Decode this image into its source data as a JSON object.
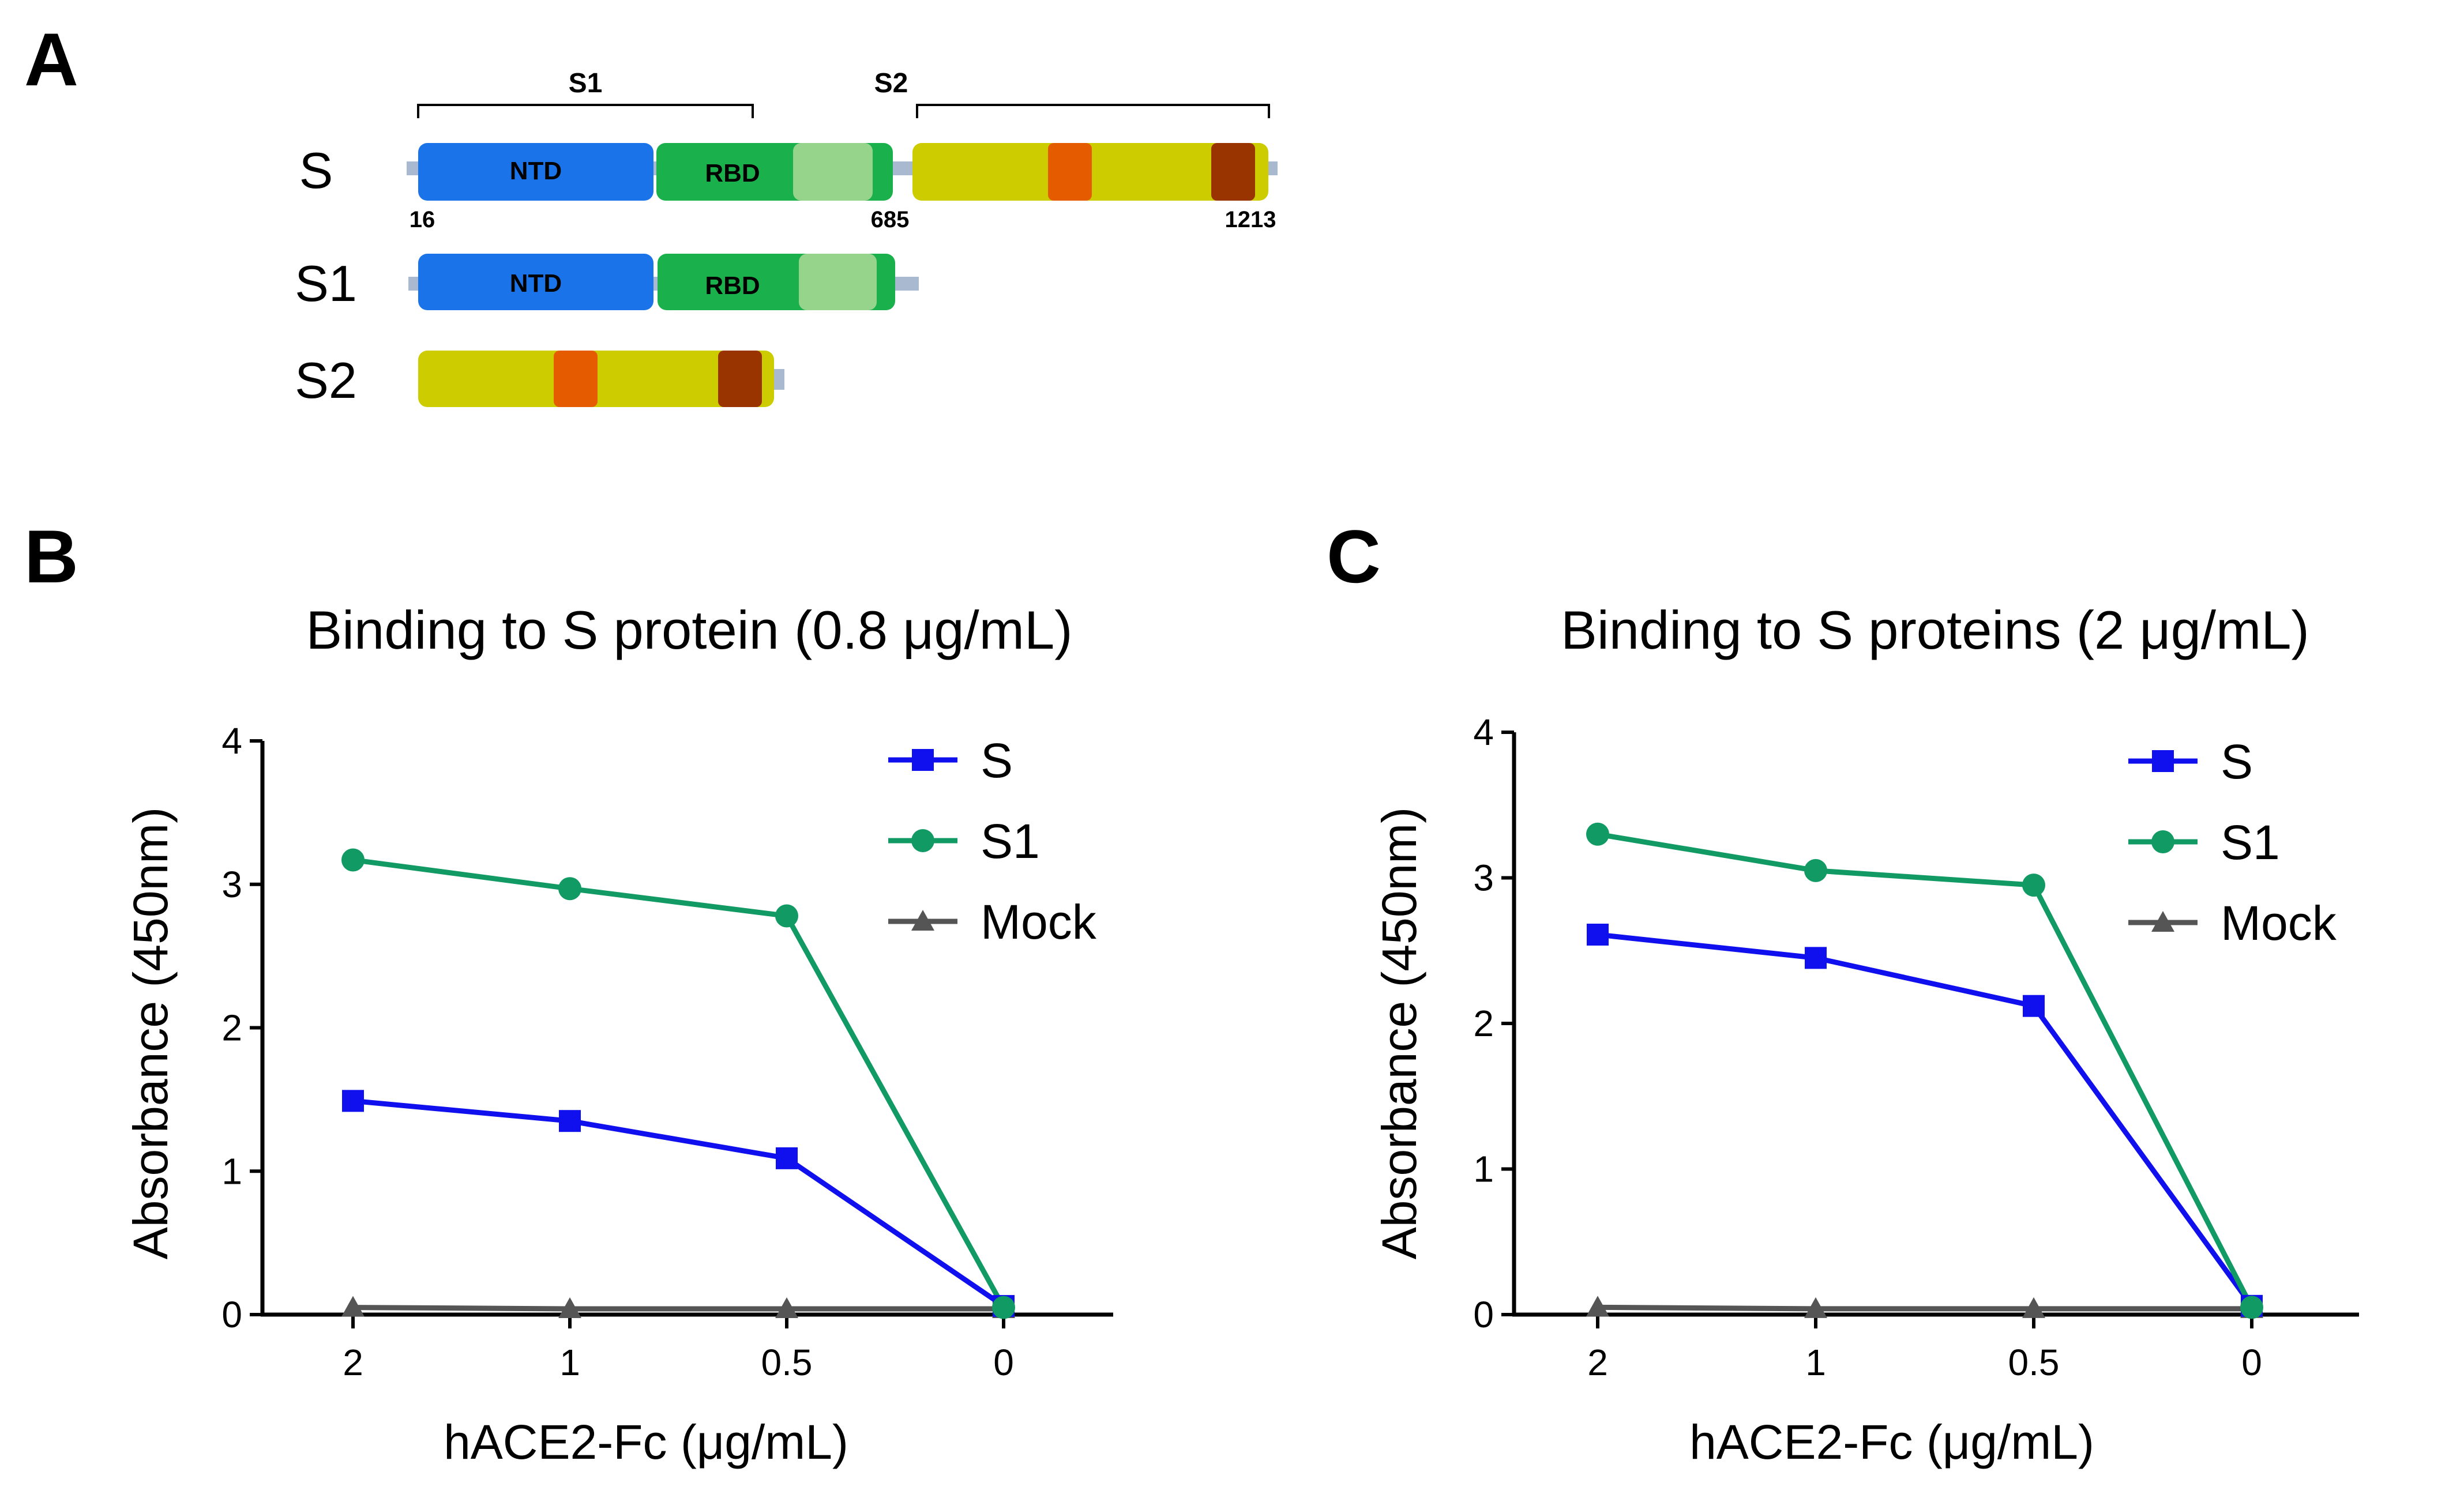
{
  "colors": {
    "S_series": "#1010ee",
    "S1_series": "#119a64",
    "Mock_series": "#555555",
    "NTD": "#1a73e8",
    "RBD": "#1ab04c",
    "RBM": "#96d48c",
    "S2_body": "#cccc00",
    "motif_orange": "#e55c00",
    "motif_brown": "#993300",
    "linker": "#a9b9cf"
  },
  "icons": {
    "marker_S": "square",
    "marker_S1": "circle",
    "marker_Mock": "triangle"
  },
  "panel_a": {
    "panel_label": "A",
    "bracket_s1_label": "S1",
    "bracket_s2_label": "S2",
    "constructs": [
      {
        "name": "S",
        "domains": [
          {
            "type": "NTD",
            "label": "NTD"
          },
          {
            "type": "RBD",
            "label": "RBD"
          },
          {
            "type": "S2",
            "label": ""
          }
        ]
      },
      {
        "name": "S1",
        "domains": [
          {
            "type": "NTD",
            "label": "NTD"
          },
          {
            "type": "RBD",
            "label": "RBD"
          }
        ]
      },
      {
        "name": "S2",
        "domains": [
          {
            "type": "S2",
            "label": ""
          }
        ]
      }
    ],
    "residue_labels": {
      "start": "16",
      "s1_end": "685",
      "end": "1213"
    }
  },
  "chart_data": [
    {
      "type": "line",
      "panel_label": "B",
      "title": "Binding to S protein (0.8 μg/mL)",
      "xlabel": "hACE2-Fc (μg/mL)",
      "ylabel": "Absorbance (450nm)",
      "categories": [
        "2",
        "1",
        "0.5",
        "0"
      ],
      "ylim": [
        0,
        4
      ],
      "yticks": [
        0,
        1,
        2,
        3,
        4
      ],
      "legend_position": "top-right",
      "series": [
        {
          "name": "S",
          "marker": "square",
          "values": [
            1.49,
            1.35,
            1.09,
            0.06
          ]
        },
        {
          "name": "S1",
          "marker": "circle",
          "values": [
            3.17,
            2.97,
            2.78,
            0.05
          ]
        },
        {
          "name": "Mock",
          "marker": "triangle",
          "values": [
            0.05,
            0.04,
            0.04,
            0.04
          ]
        }
      ]
    },
    {
      "type": "line",
      "panel_label": "C",
      "title": "Binding to S proteins (2 μg/mL)",
      "xlabel": "hACE2-Fc (μg/mL)",
      "ylabel": "Absorbance (450nm)",
      "categories": [
        "2",
        "1",
        "0.5",
        "0"
      ],
      "ylim": [
        0,
        4
      ],
      "yticks": [
        0,
        1,
        2,
        3,
        4
      ],
      "legend_position": "top-right",
      "series": [
        {
          "name": "S",
          "marker": "square",
          "values": [
            2.61,
            2.45,
            2.12,
            0.06
          ]
        },
        {
          "name": "S1",
          "marker": "circle",
          "values": [
            3.3,
            3.05,
            2.95,
            0.05
          ]
        },
        {
          "name": "Mock",
          "marker": "triangle",
          "values": [
            0.05,
            0.04,
            0.04,
            0.04
          ]
        }
      ]
    }
  ]
}
